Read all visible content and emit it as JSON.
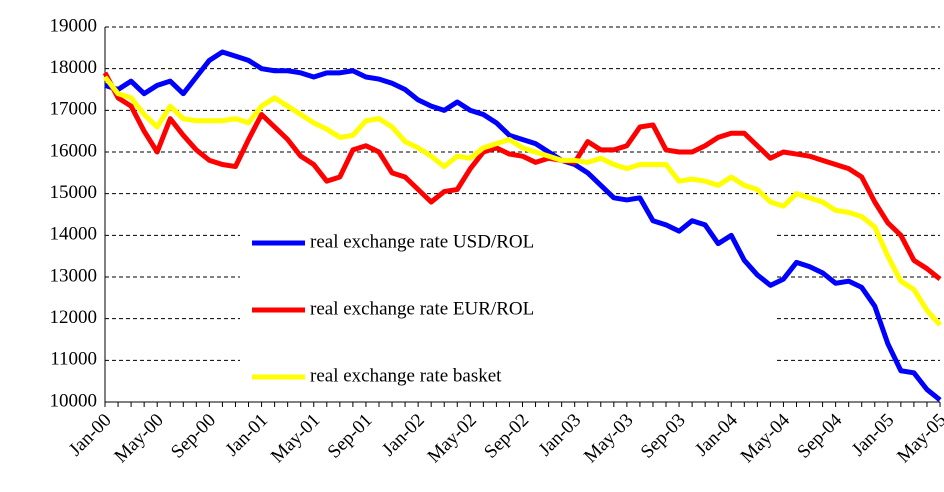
{
  "chart_data": {
    "type": "line",
    "categories": [
      "Jan-00",
      null,
      null,
      null,
      "May-00",
      null,
      null,
      null,
      "Sep-00",
      null,
      null,
      null,
      "Jan-01",
      null,
      null,
      null,
      "May-01",
      null,
      null,
      null,
      "Sep-01",
      null,
      null,
      null,
      "Jan-02",
      null,
      null,
      null,
      "May-02",
      null,
      null,
      null,
      "Sep-02",
      null,
      null,
      null,
      "Jan-03",
      null,
      null,
      null,
      "May-03",
      null,
      null,
      null,
      "Sep-03",
      null,
      null,
      null,
      "Jan-04",
      null,
      null,
      null,
      "May-04",
      null,
      null,
      null,
      "Sep-04",
      null,
      null,
      null,
      "Jan-05",
      null,
      null,
      null,
      "May-05"
    ],
    "series": [
      {
        "name": "real exchange rate USD/ROL",
        "color": "#0000ff",
        "values": [
          17600,
          17500,
          17700,
          17400,
          17600,
          17700,
          17400,
          17800,
          18200,
          18400,
          18300,
          18200,
          18000,
          17950,
          17950,
          17900,
          17800,
          17900,
          17900,
          17950,
          17800,
          17750,
          17650,
          17500,
          17250,
          17100,
          17000,
          17200,
          17000,
          16900,
          16700,
          16400,
          16300,
          16200,
          16000,
          15800,
          15700,
          15500,
          15200,
          14900,
          14850,
          14900,
          14350,
          14250,
          14100,
          14350,
          14250,
          13800,
          14000,
          13400,
          13050,
          12800,
          12950,
          13350,
          13250,
          13100,
          12850,
          12900,
          12750,
          12300,
          11400,
          10750,
          10700,
          10300,
          10050
        ]
      },
      {
        "name": "real exchange rate EUR/ROL",
        "color": "#ff0000",
        "values": [
          17900,
          17300,
          17100,
          16500,
          16000,
          16800,
          16400,
          16050,
          15800,
          15700,
          15650,
          16300,
          16900,
          16600,
          16300,
          15900,
          15700,
          15300,
          15400,
          16050,
          16150,
          16000,
          15500,
          15400,
          15100,
          14800,
          15050,
          15100,
          15600,
          16000,
          16100,
          15950,
          15900,
          15750,
          15850,
          15800,
          15750,
          16250,
          16050,
          16050,
          16150,
          16600,
          16650,
          16050,
          16000,
          16000,
          16150,
          16350,
          16450,
          16450,
          16150,
          15850,
          16000,
          15950,
          15900,
          15800,
          15700,
          15600,
          15400,
          14800,
          14300,
          14000,
          13400,
          13200,
          12950
        ]
      },
      {
        "name": "real exchange rate basket",
        "color": "#ffff00",
        "values": [
          17800,
          17400,
          17300,
          16900,
          16600,
          17100,
          16800,
          16750,
          16750,
          16750,
          16800,
          16700,
          17100,
          17300,
          17100,
          16900,
          16700,
          16550,
          16350,
          16400,
          16750,
          16800,
          16600,
          16250,
          16100,
          15900,
          15650,
          15900,
          15850,
          16100,
          16200,
          16300,
          16100,
          16000,
          15900,
          15800,
          15800,
          15750,
          15850,
          15700,
          15600,
          15700,
          15700,
          15700,
          15300,
          15350,
          15300,
          15200,
          15400,
          15200,
          15100,
          14800,
          14700,
          15000,
          14900,
          14800,
          14600,
          14550,
          14450,
          14200,
          13500,
          12900,
          12700,
          12200,
          11850
        ]
      }
    ],
    "ylim": [
      10000,
      19000
    ],
    "yticks": [
      10000,
      11000,
      12000,
      13000,
      14000,
      15000,
      16000,
      17000,
      18000,
      19000
    ],
    "grid": true
  }
}
